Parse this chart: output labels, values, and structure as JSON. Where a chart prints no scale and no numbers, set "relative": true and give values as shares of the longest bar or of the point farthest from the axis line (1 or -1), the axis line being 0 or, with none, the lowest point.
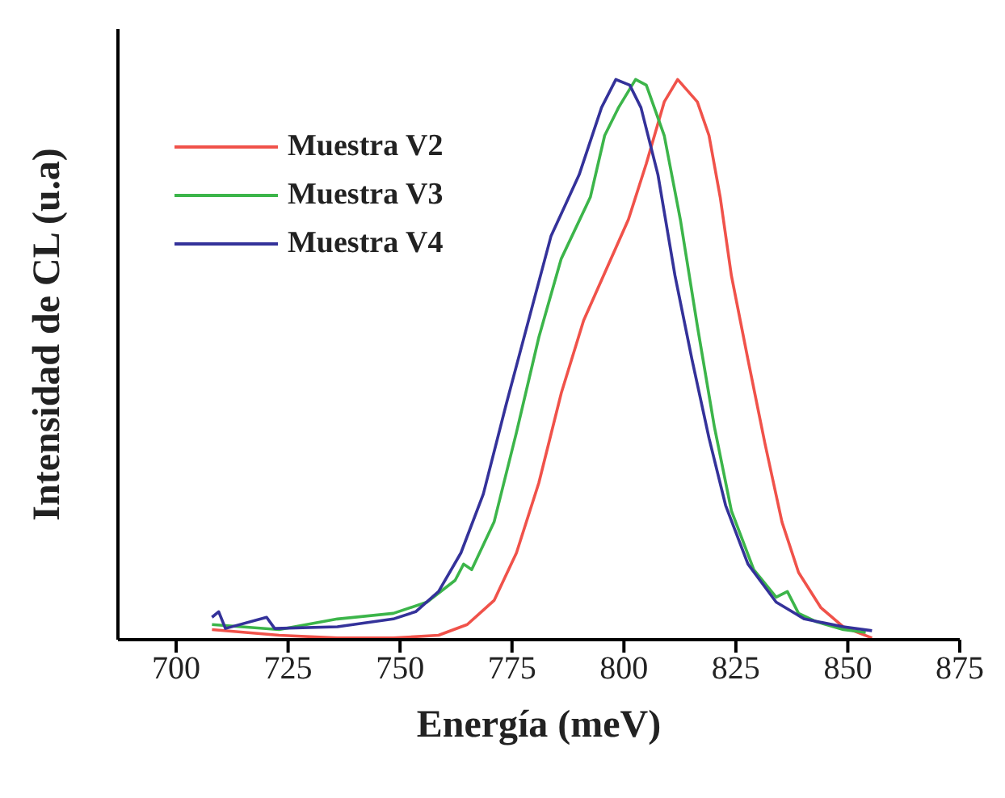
{
  "chart_data": {
    "type": "line",
    "xlabel": "Energía (meV)",
    "ylabel": "Intensidad de CL (u.a)",
    "relative": true,
    "xlim": [
      687,
      875
    ],
    "xticks": [
      700,
      725,
      750,
      775,
      800,
      825,
      850,
      875
    ],
    "legend": "top left",
    "grid": false,
    "marker": "none",
    "line_style": "solid",
    "series": [
      {
        "name": "Muestra V2",
        "color": "#f0524a",
        "x": [
          708,
          723,
          736,
          748.5,
          758.6,
          765,
          771,
          776,
          781,
          786,
          791,
          796,
          801,
          805,
          809,
          812,
          816.4,
          819,
          821.5,
          824,
          827.7,
          831.5,
          835.3,
          839,
          844,
          849,
          855.4
        ],
        "values": [
          0.018,
          0.008,
          0.003,
          0.003,
          0.008,
          0.027,
          0.07,
          0.155,
          0.28,
          0.44,
          0.57,
          0.66,
          0.75,
          0.85,
          0.96,
          1,
          0.96,
          0.9,
          0.79,
          0.65,
          0.5,
          0.35,
          0.21,
          0.12,
          0.057,
          0.023,
          0.003
        ]
      },
      {
        "name": "Muestra V3",
        "color": "#3cb54a",
        "x": [
          708,
          723,
          736,
          748.5,
          756,
          762.3,
          764.2,
          766,
          771,
          776,
          781,
          786,
          792.5,
          795.7,
          798.8,
          802.6,
          805,
          809,
          812.6,
          816.4,
          820.2,
          824,
          829,
          834,
          836.5,
          839,
          843,
          849,
          854
        ],
        "values": [
          0.027,
          0.018,
          0.037,
          0.047,
          0.067,
          0.106,
          0.135,
          0.125,
          0.21,
          0.37,
          0.54,
          0.68,
          0.79,
          0.9,
          0.95,
          1,
          0.99,
          0.9,
          0.75,
          0.56,
          0.38,
          0.23,
          0.125,
          0.076,
          0.086,
          0.047,
          0.032,
          0.018,
          0.013
        ]
      },
      {
        "name": "Muestra V4",
        "color": "#34329a",
        "x": [
          708,
          709.5,
          711,
          720.2,
          722,
          736,
          748.5,
          753.5,
          758.6,
          763.6,
          768.6,
          773.7,
          778.7,
          783.7,
          790,
          795,
          798.2,
          801.3,
          803.8,
          807.6,
          811.4,
          815.2,
          819,
          822.7,
          827.7,
          834,
          840.3,
          849,
          855.4
        ],
        "values": [
          0.04,
          0.05,
          0.02,
          0.04,
          0.02,
          0.023,
          0.037,
          0.05,
          0.086,
          0.155,
          0.26,
          0.42,
          0.57,
          0.72,
          0.83,
          0.95,
          1,
          0.99,
          0.95,
          0.83,
          0.65,
          0.5,
          0.36,
          0.24,
          0.135,
          0.067,
          0.037,
          0.023,
          0.016
        ]
      }
    ]
  }
}
